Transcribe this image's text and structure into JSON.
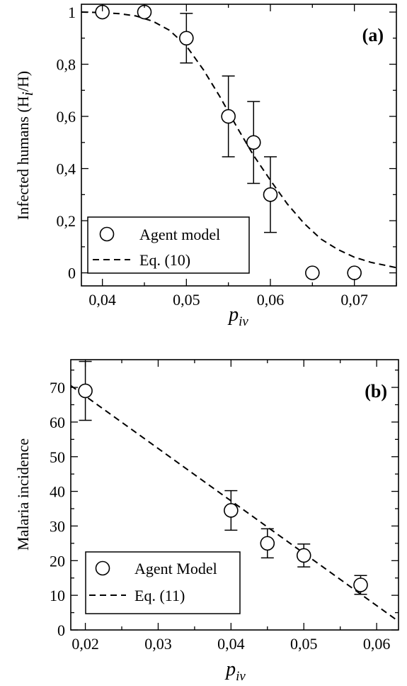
{
  "chart_data": [
    {
      "type": "scatter",
      "panel_tag": "(a)",
      "xlabel": "p",
      "xlabel_sub": "iv",
      "ylabel": "Infected humans (H",
      "ylabel_sub": "i",
      "ylabel_end": "/H)",
      "xlim": [
        0.0375,
        0.075
      ],
      "ylim": [
        -0.05,
        1.03
      ],
      "xticks": [
        0.04,
        0.05,
        0.06,
        0.07
      ],
      "xtick_labels": [
        "0,04",
        "0,05",
        "0,06",
        "0,07"
      ],
      "yticks": [
        0,
        0.2,
        0.4,
        0.6,
        0.8,
        1.0
      ],
      "ytick_labels": [
        "0",
        "0,2",
        "0,4",
        "0,6",
        "0,8",
        "1"
      ],
      "legend_position": "bottom-left",
      "series": [
        {
          "name": "Agent model",
          "kind": "markers",
          "x": [
            0.04,
            0.045,
            0.05,
            0.055,
            0.058,
            0.06,
            0.065,
            0.07
          ],
          "y": [
            1.0,
            1.0,
            0.9,
            0.6,
            0.5,
            0.3,
            0.0,
            0.0
          ],
          "err": [
            0,
            0,
            0.095,
            0.155,
            0.157,
            0.145,
            0,
            0
          ]
        },
        {
          "name": "Eq. (10)",
          "kind": "dashed-line",
          "x": [
            0.0375,
            0.04,
            0.042,
            0.044,
            0.046,
            0.048,
            0.05,
            0.052,
            0.054,
            0.056,
            0.058,
            0.06,
            0.062,
            0.064,
            0.066,
            0.068,
            0.07,
            0.072,
            0.075
          ],
          "y": [
            1.0,
            0.998,
            0.994,
            0.985,
            0.965,
            0.93,
            0.87,
            0.78,
            0.675,
            0.56,
            0.45,
            0.355,
            0.265,
            0.19,
            0.13,
            0.09,
            0.06,
            0.04,
            0.02
          ]
        }
      ]
    },
    {
      "type": "scatter",
      "panel_tag": "(b)",
      "xlabel": "p",
      "xlabel_sub": "iv",
      "ylabel": "Malaria incidence",
      "xlim": [
        0.018,
        0.063
      ],
      "ylim": [
        0,
        78
      ],
      "xticks": [
        0.02,
        0.03,
        0.04,
        0.05,
        0.06
      ],
      "xtick_labels": [
        "0,02",
        "0,03",
        "0,04",
        "0,05",
        "0,06"
      ],
      "yticks": [
        0,
        10,
        20,
        30,
        40,
        50,
        60,
        70
      ],
      "ytick_labels": [
        "0",
        "10",
        "20",
        "30",
        "40",
        "50",
        "60",
        "70"
      ],
      "legend_position": "bottom-left",
      "series": [
        {
          "name": "Agent Model",
          "kind": "markers",
          "x": [
            0.02,
            0.04,
            0.045,
            0.05,
            0.0578
          ],
          "y": [
            69,
            34.5,
            25,
            21.5,
            13
          ],
          "err": [
            8.5,
            5.7,
            4.2,
            3.3,
            2.7
          ]
        },
        {
          "name": "Eq. (11)",
          "kind": "dashed-line",
          "x": [
            0.018,
            0.063
          ],
          "y": [
            70.5,
            2.5
          ]
        }
      ]
    }
  ]
}
